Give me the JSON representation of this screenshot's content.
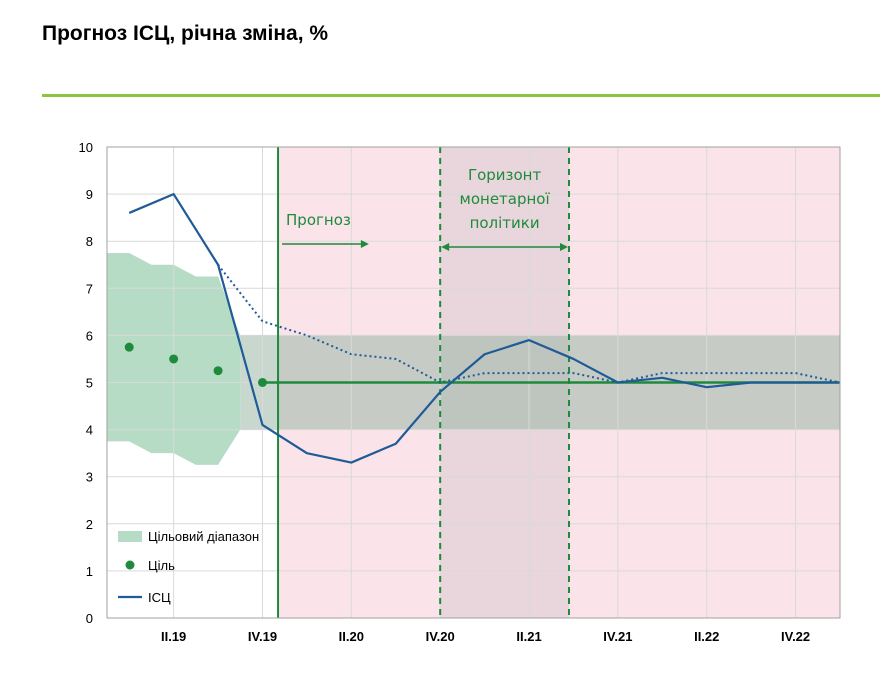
{
  "title": "Прогноз ІСЦ, річна зміна, %",
  "colors": {
    "accent_rule": "#8cc63f",
    "forecast_bg": "#fbe3ea",
    "horizon_bg": "#e8d6dc",
    "band": "#b7dcc6",
    "target_band": "#9bb8a6",
    "cpi_line": "#1f5b96",
    "green": "#1e8a3c"
  },
  "chart_data": {
    "type": "line",
    "title": "Прогноз ІСЦ, річна зміна, %",
    "xlabel": "",
    "ylabel": "",
    "ylim": [
      0,
      10
    ],
    "yticks": [
      "0",
      "1",
      "2",
      "3",
      "4",
      "5",
      "6",
      "7",
      "8",
      "9",
      "10"
    ],
    "x_tick_labels": [
      "II.19",
      "IV.19",
      "II.20",
      "IV.20",
      "II.21",
      "IV.21",
      "II.22",
      "IV.22"
    ],
    "grid": true,
    "legend_position": "bottom-left",
    "annotations": {
      "forecast": "Прогноз",
      "horizon_line1": "Горизонт",
      "horizon_line2": "монетарної",
      "horizon_line3": "політики"
    },
    "legend": {
      "band": "Цільовий діапазон",
      "target": "Ціль",
      "cpi": "ІСЦ"
    },
    "target_range": {
      "x": [
        0.5,
        1,
        1.5,
        2,
        2.5,
        3,
        3.5
      ],
      "upper": [
        7.75,
        7.75,
        7.5,
        7.5,
        7.25,
        7.25,
        6
      ],
      "lower": [
        3.75,
        3.75,
        3.5,
        3.5,
        3.25,
        3.25,
        4
      ]
    },
    "forecast_target_range": {
      "from_x": 3.5,
      "to_x": 17,
      "lower": 4,
      "upper": 6
    },
    "target_points": {
      "x": [
        1,
        2,
        3,
        4
      ],
      "y": [
        5.75,
        5.5,
        5.25,
        5
      ]
    },
    "target_line": {
      "from_x": 4,
      "to_x": 17,
      "y": 5
    },
    "series": [
      {
        "name": "ІСЦ",
        "style": "solid",
        "x": [
          1,
          2,
          3,
          4,
          5,
          6,
          7,
          8,
          9,
          10,
          11,
          12,
          13,
          14,
          15,
          16,
          17
        ],
        "y": [
          8.6,
          9.0,
          7.5,
          4.1,
          3.5,
          3.3,
          3.7,
          4.8,
          5.6,
          5.9,
          5.5,
          5.0,
          5.1,
          4.9,
          5.0,
          5.0,
          5.0
        ]
      },
      {
        "style": "dotted",
        "x": [
          3,
          4,
          5,
          6,
          7,
          8,
          9,
          10,
          11,
          12,
          13,
          14,
          15,
          16,
          17
        ],
        "y": [
          7.5,
          6.3,
          6.0,
          5.6,
          5.5,
          5.0,
          5.2,
          5.2,
          5.2,
          5.0,
          5.2,
          5.2,
          5.2,
          5.2,
          5.0
        ]
      }
    ],
    "forecast_start_x": 4.35,
    "horizon_from_x": 8,
    "horizon_to_x": 10.9
  }
}
